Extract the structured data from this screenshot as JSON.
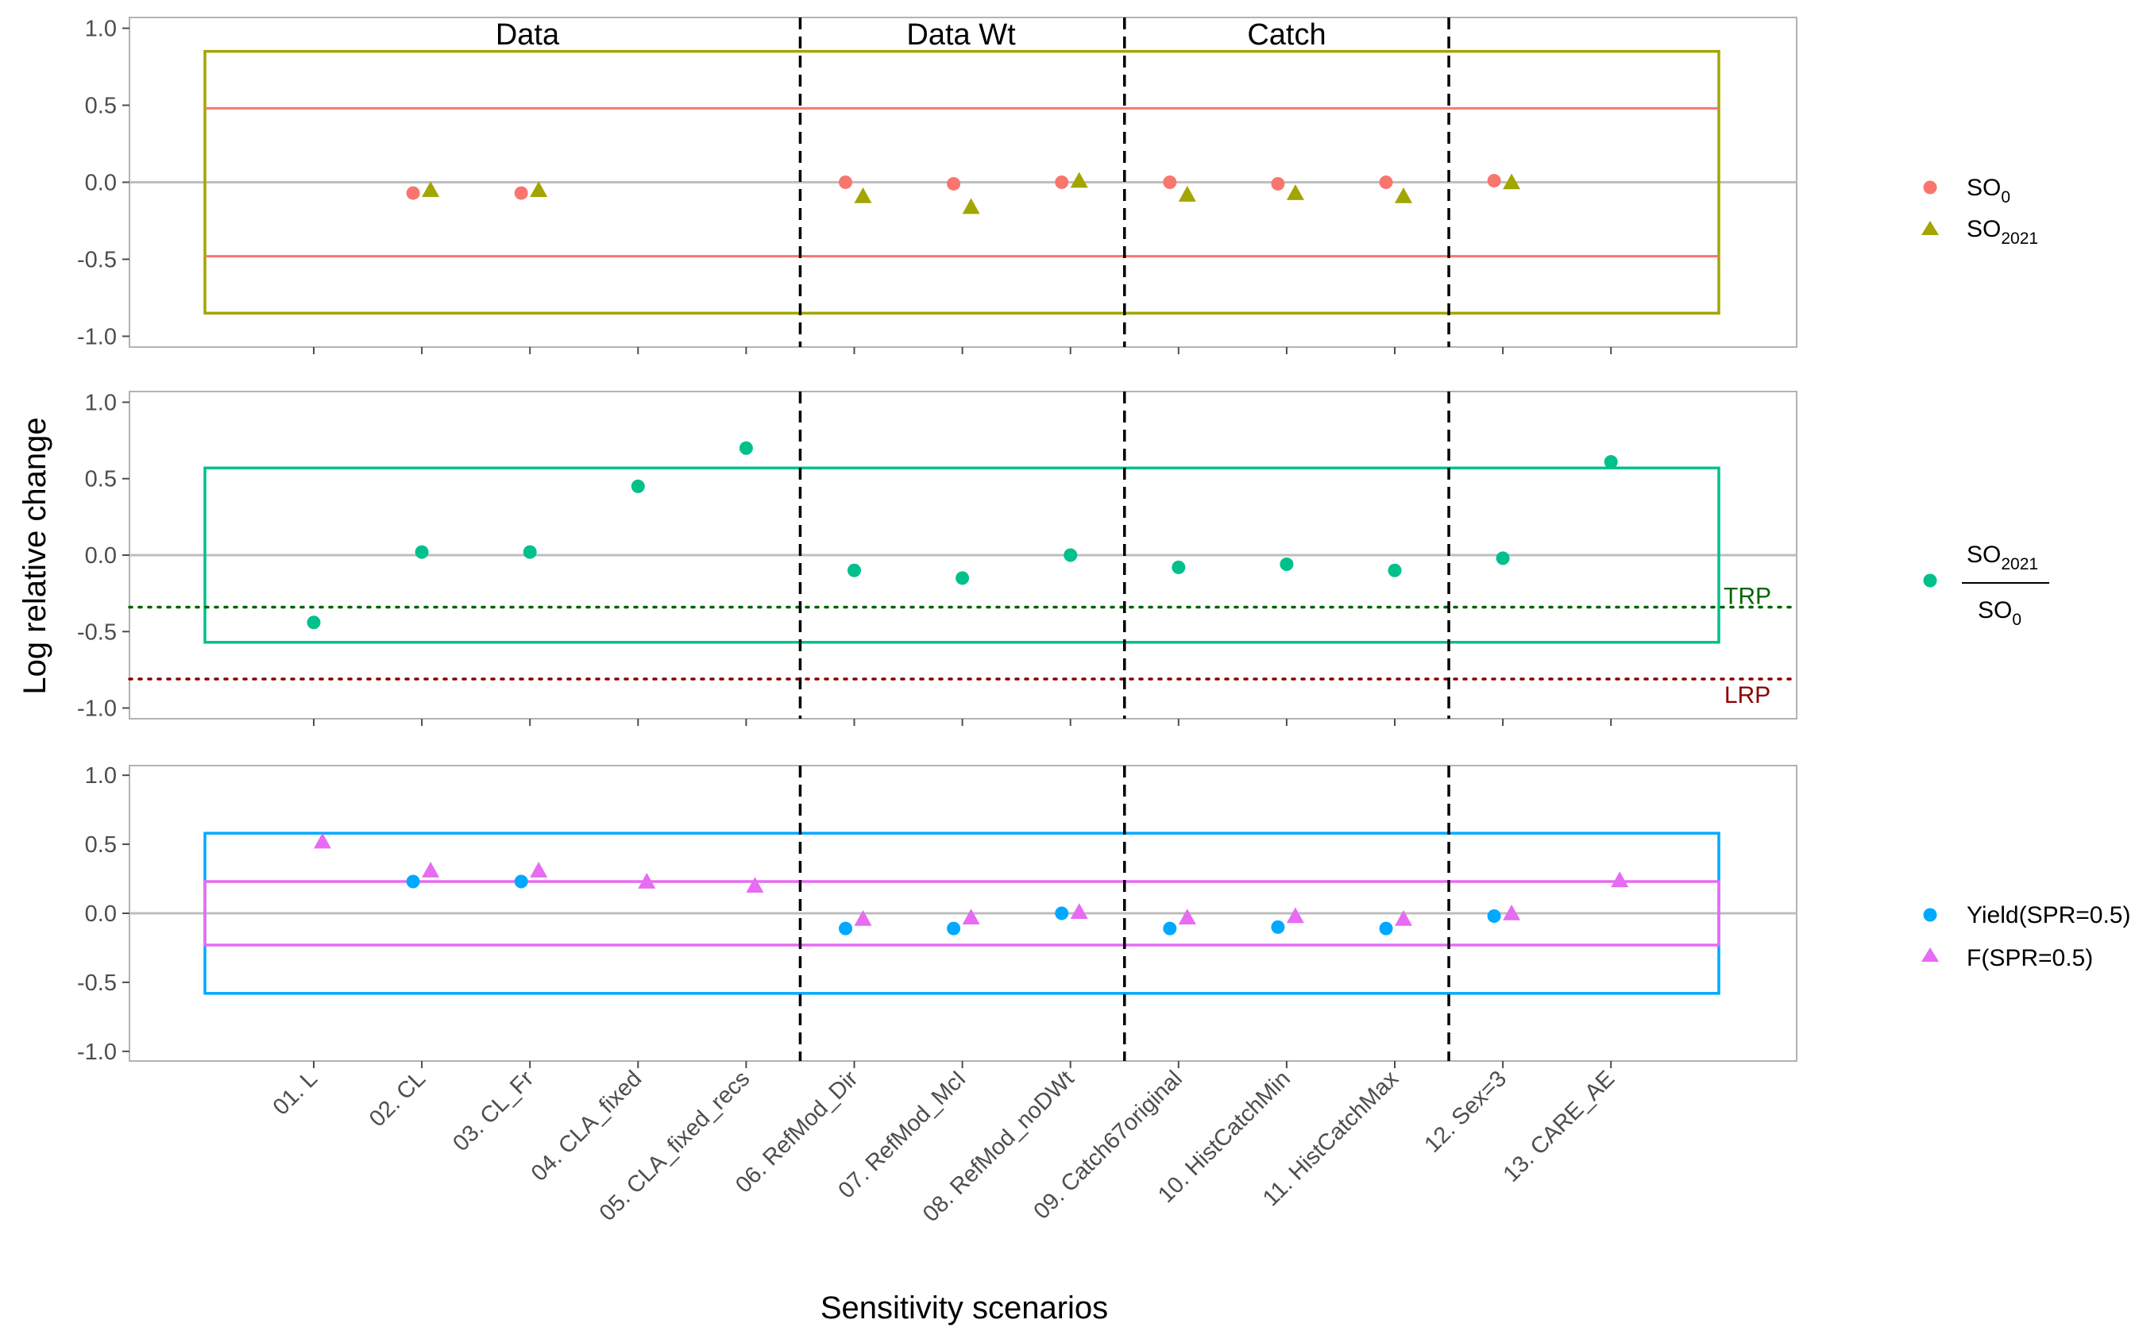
{
  "chart_data": {
    "type": "scatter",
    "xlabel": "Sensitivity scenarios",
    "ylabel": "Log relative change",
    "categories": [
      "01. L",
      "02. CL",
      "03. CL_Fr",
      "04. CLA_fixed",
      "05. CLA_fixed_recs",
      "06. RefMod_Dir",
      "07. RefMod_McI",
      "08. RefMod_noDWt",
      "09. Catch67original",
      "10. HistCatchMin",
      "11. HistCatchMax",
      "12. Sex=3",
      "13. CARE_AE"
    ],
    "groups": [
      {
        "label": "Data",
        "after": 5
      },
      {
        "label": "Data Wt",
        "after": 8
      },
      {
        "label": "Catch",
        "after": 11
      }
    ],
    "ylim": [
      -1.07,
      1.07
    ],
    "yticks": [
      "1.0",
      "0.5",
      "0.0",
      "-0.5",
      "-1.0"
    ],
    "panels": [
      {
        "id": "so",
        "series": [
          {
            "key": "so0",
            "name": "SO",
            "sub": "0",
            "color": "#F8766D",
            "shape": "circle",
            "values": [
              null,
              -0.07,
              -0.07,
              null,
              null,
              0.0,
              -0.01,
              0.0,
              0.0,
              -0.01,
              0.0,
              0.01,
              null
            ]
          },
          {
            "key": "so2021",
            "name": "SO",
            "sub": "2021",
            "color": "#A3A500",
            "shape": "triangle",
            "values": [
              null,
              -0.05,
              -0.05,
              null,
              null,
              -0.09,
              -0.16,
              0.01,
              -0.08,
              -0.07,
              -0.09,
              0.0,
              null
            ]
          }
        ],
        "boxes": [
          {
            "ymin": -0.85,
            "ymax": 0.85,
            "color": "#A3A500"
          }
        ],
        "hlines": [
          {
            "y": 0.48,
            "color": "#F8766D"
          },
          {
            "y": -0.48,
            "color": "#F8766D"
          }
        ]
      },
      {
        "id": "ratio",
        "series": [
          {
            "key": "ratio",
            "name": "SO2021/SO0",
            "numerator": "SO",
            "numerator_sub": "2021",
            "denominator": "SO",
            "denominator_sub": "0",
            "color": "#00C08B",
            "shape": "circle",
            "values": [
              -0.44,
              0.02,
              0.02,
              0.45,
              0.7,
              -0.1,
              -0.15,
              0.0,
              -0.08,
              -0.06,
              -0.1,
              -0.02,
              0.61
            ]
          }
        ],
        "boxes": [
          {
            "ymin": -0.57,
            "ymax": 0.57,
            "color": "#00C08B"
          }
        ],
        "reflines": [
          {
            "label": "TRP",
            "y": -0.34,
            "color": "#006400"
          },
          {
            "label": "LRP",
            "y": -0.81,
            "color": "#8B0000"
          }
        ]
      },
      {
        "id": "yield",
        "series": [
          {
            "key": "yield",
            "name": "Yield(SPR=0.5)",
            "color": "#00A9FF",
            "shape": "circle",
            "values": [
              null,
              0.23,
              0.23,
              null,
              null,
              -0.11,
              -0.11,
              0.0,
              -0.11,
              -0.1,
              -0.11,
              -0.02,
              null
            ]
          },
          {
            "key": "f",
            "name": "F(SPR=0.5)",
            "color": "#E76BF3",
            "shape": "triangle",
            "values": [
              0.52,
              0.31,
              0.31,
              0.23,
              0.2,
              -0.04,
              -0.03,
              0.01,
              -0.03,
              -0.02,
              -0.04,
              0.0,
              0.24
            ]
          }
        ],
        "boxes": [
          {
            "ymin": -0.58,
            "ymax": 0.58,
            "color": "#00A9FF"
          },
          {
            "ymin": -0.23,
            "ymax": 0.23,
            "color": "#E76BF3"
          }
        ]
      }
    ]
  }
}
